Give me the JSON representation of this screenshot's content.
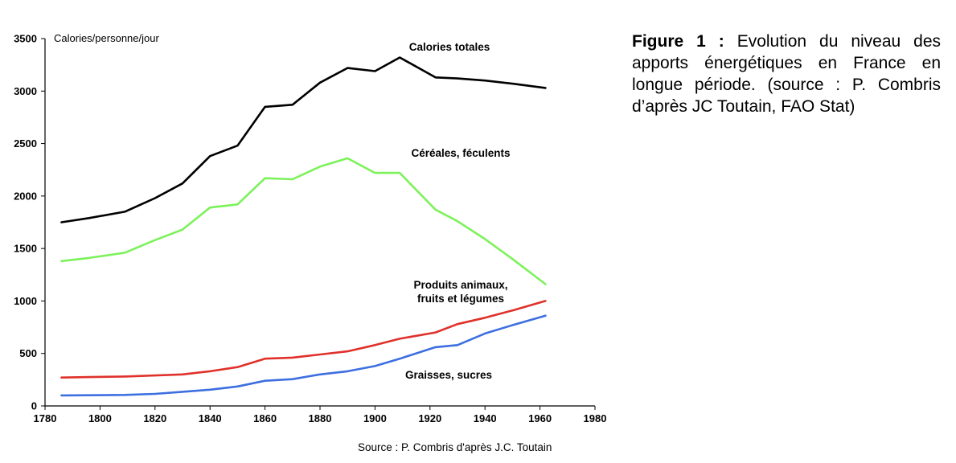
{
  "caption": {
    "label": "Figure 1 :",
    "text": "Evolution du niveau des apports énergétiques en France en longue période. (source : P. Combris d’après JC Toutain, FAO Stat)"
  },
  "source": "Source : P. Combris d'après J.C. Toutain",
  "chart_data": {
    "type": "line",
    "title": "",
    "ylabel": "Calories/personne/jour",
    "xlabel": "",
    "xlim": [
      1780,
      1980
    ],
    "ylim": [
      0,
      3500
    ],
    "xticks": [
      1780,
      1800,
      1820,
      1840,
      1860,
      1880,
      1900,
      1920,
      1940,
      1960,
      1980
    ],
    "yticks": [
      0,
      500,
      1000,
      1500,
      2000,
      2500,
      3000,
      3500
    ],
    "grid": false,
    "legend": "inline labels",
    "series": [
      {
        "name": "Calories totales",
        "color": "#000000",
        "x": [
          1786,
          1796,
          1809,
          1820,
          1830,
          1840,
          1850,
          1860,
          1870,
          1880,
          1890,
          1900,
          1909,
          1922,
          1930,
          1940,
          1950,
          1962
        ],
        "y": [
          1750,
          1790,
          1850,
          1980,
          2120,
          2380,
          2480,
          2850,
          2870,
          3080,
          3220,
          3190,
          3320,
          3130,
          3120,
          3100,
          3070,
          3030
        ],
        "label": "Calories totales"
      },
      {
        "name": "Céréales, féculents",
        "color": "#7cf25a",
        "x": [
          1786,
          1796,
          1809,
          1820,
          1830,
          1840,
          1850,
          1860,
          1870,
          1880,
          1890,
          1900,
          1909,
          1922,
          1930,
          1940,
          1950,
          1962
        ],
        "y": [
          1380,
          1410,
          1460,
          1580,
          1680,
          1890,
          1920,
          2170,
          2160,
          2280,
          2360,
          2220,
          2220,
          1870,
          1760,
          1590,
          1400,
          1160
        ],
        "label": "Céréales, féculents"
      },
      {
        "name": "Produits animaux, fruits et légumes",
        "color": "#e0312b",
        "x": [
          1786,
          1796,
          1809,
          1820,
          1830,
          1840,
          1850,
          1860,
          1870,
          1880,
          1890,
          1900,
          1909,
          1922,
          1930,
          1940,
          1950,
          1962
        ],
        "y": [
          270,
          275,
          280,
          290,
          300,
          330,
          370,
          450,
          460,
          490,
          520,
          580,
          640,
          700,
          780,
          840,
          910,
          1000
        ],
        "label_lines": [
          "Produits animaux,",
          "fruits et légumes"
        ]
      },
      {
        "name": "Graisses, sucres",
        "color": "#3d6fe0",
        "x": [
          1786,
          1796,
          1809,
          1820,
          1830,
          1840,
          1850,
          1860,
          1870,
          1880,
          1890,
          1900,
          1909,
          1922,
          1930,
          1940,
          1950,
          1962
        ],
        "y": [
          100,
          102,
          105,
          115,
          135,
          155,
          185,
          240,
          255,
          300,
          330,
          380,
          450,
          560,
          580,
          690,
          770,
          860
        ],
        "label": "Graisses, sucres"
      }
    ]
  }
}
